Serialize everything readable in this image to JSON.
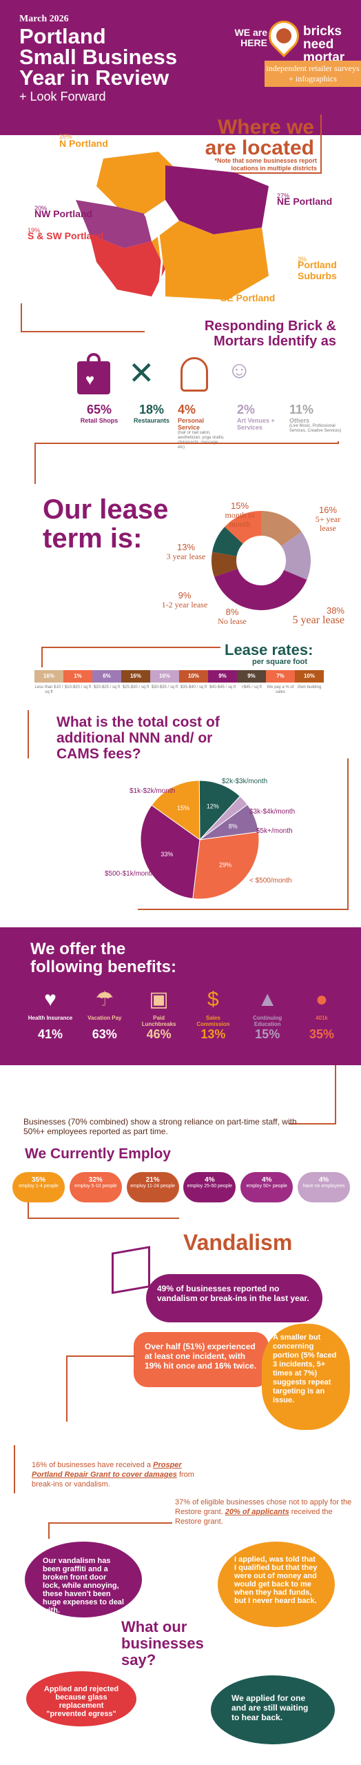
{
  "header": {
    "date": "March 2026",
    "title_line1": "Portland",
    "title_line2": "Small Business",
    "title_line3": "Year in Review",
    "subtitle": "+ Look Forward",
    "we_are_here": "WE are HERE",
    "brand": "bricks need mortar",
    "brand_tagline": "independent retailer surveys + infographics"
  },
  "locations": {
    "title_line1": "Where we",
    "title_line2": "are located",
    "note": "*Note that some businesses report locations in multiple districts",
    "districts": [
      {
        "pct": "16%",
        "name": "N Portland"
      },
      {
        "pct": "20%",
        "name": "NW Portland"
      },
      {
        "pct": "19%",
        "name": "S & SW Portland"
      },
      {
        "pct": "27%",
        "name": "NE Portland"
      },
      {
        "pct": "3%",
        "name": "Portland Suburbs"
      },
      {
        "pct": "33%",
        "name": "SE Portland"
      }
    ]
  },
  "business_types": {
    "title_line1": "Responding Brick &",
    "title_line2": "Mortars Identify as",
    "items": [
      {
        "pct": "65%",
        "label": "Retail Shops",
        "detail": "",
        "icon": "shopping-bag-heart-icon"
      },
      {
        "pct": "18%",
        "label": "Restaurants",
        "detail": "",
        "icon": "fork-knife-icon"
      },
      {
        "pct": "4%",
        "label": "Personal Service",
        "detail": "(hair or nail salon, aesthetician, yoga studio, chiropractic, massage, etc)",
        "icon": "haircut-icon"
      },
      {
        "pct": "2%",
        "label": "Art Venues + Services",
        "detail": "",
        "icon": "art-venue-icon"
      },
      {
        "pct": "11%",
        "label": "Others",
        "detail": "(Live Music, Professional Services, Creative Services)",
        "icon": ""
      }
    ]
  },
  "lease_term": {
    "title_line1": "Our lease",
    "title_line2": "term is:",
    "segments": [
      {
        "pct": "15%",
        "label": "month to month",
        "color": "#c68a64"
      },
      {
        "pct": "16%",
        "label": "5+ year lease",
        "color": "#b39bbd"
      },
      {
        "pct": "38%",
        "label": "5 year lease",
        "color": "#8b1a6e"
      },
      {
        "pct": "8%",
        "label": "No lease",
        "color": "#8a4a1d"
      },
      {
        "pct": "9%",
        "label": "1-2 year lease",
        "color": "#1e5a52"
      },
      {
        "pct": "13%",
        "label": "3 year lease",
        "color": "#f06a45"
      }
    ]
  },
  "lease_rates": {
    "title": "Lease rates:",
    "subtitle": "per square foot",
    "segments": [
      {
        "pct": "16%",
        "color": "#d7b48c",
        "label": "Less than $10 / sq ft"
      },
      {
        "pct": "1%",
        "color": "#f06a45",
        "label": "$10-$20 / sq ft"
      },
      {
        "pct": "6%",
        "color": "#9e7ab4",
        "label": "$20-$25 / sq ft"
      },
      {
        "pct": "16%",
        "color": "#8a4a1d",
        "label": "$25-$30 / sq ft"
      },
      {
        "pct": "16%",
        "color": "#c6a3c8",
        "label": "$30-$35 / sq ft"
      },
      {
        "pct": "10%",
        "color": "#c4562e",
        "label": "$35-$40 / sq ft"
      },
      {
        "pct": "9%",
        "color": "#8b1a6e",
        "label": "$40-$45 / sq ft"
      },
      {
        "pct": "9%",
        "color": "#5a4636",
        "label": ">$45 / sq ft"
      },
      {
        "pct": "7%",
        "color": "#f06a45",
        "label": "We pay a % of sales"
      },
      {
        "pct": "10%",
        "color": "#b5581a",
        "label": "Own building"
      }
    ]
  },
  "nnn": {
    "title_line1": "What is the total cost of",
    "title_line2": "additional NNN and/ or",
    "title_line3": "CAMS fees?",
    "slices": [
      {
        "label": "$1k-$2k/month",
        "pct": "15%",
        "value": 15,
        "color": "#f39a1d"
      },
      {
        "label": "$2k-$3k/month",
        "pct": "12%",
        "value": 12,
        "color": "#1e5a52"
      },
      {
        "label": "$3k-$4k/month",
        "pct": "3%",
        "value": 3,
        "color": "#c6a3c8"
      },
      {
        "label": "$5k+/month",
        "pct": "8%",
        "value": 8,
        "color": "#8e6aa0"
      },
      {
        "label": "< $500/month",
        "pct": "29%",
        "value": 29,
        "color": "#f06a45"
      },
      {
        "label": "$500-$1k/month",
        "pct": "33%",
        "value": 33,
        "color": "#8b1a6e"
      }
    ]
  },
  "benefits": {
    "title_line1": "We offer the",
    "title_line2": "following benefits:",
    "items": [
      {
        "label": "Health Insurance",
        "pct": "41%",
        "icon": "heart-shield-icon",
        "color": "#ffffff"
      },
      {
        "label": "Vacation Pay",
        "pct": "63%",
        "icon": "beach-umbrella-icon",
        "color": "#ffffff"
      },
      {
        "label": "Paid Lunchbreaks",
        "pct": "46%",
        "icon": "lunch-bag-icon",
        "color": "#f3c89a"
      },
      {
        "label": "Sales Commission",
        "pct": "13%",
        "icon": "coins-chart-icon",
        "color": "#f39a1d"
      },
      {
        "label": "Continuing Education",
        "pct": "15%",
        "icon": "graduation-cap-icon",
        "color": "#b39bbd"
      },
      {
        "label": "401k",
        "pct": "35%",
        "icon": "piggy-bank-icon",
        "color": "#f06a45"
      }
    ]
  },
  "employ": {
    "intro": "Businesses (70% combined) show a strong reliance on part-time staff, with 50%+ employees reported as part time.",
    "title": "We Currently Employ",
    "items": [
      {
        "pct": "35%",
        "label": "employ 1-4 people",
        "color": "#f39a1d"
      },
      {
        "pct": "32%",
        "label": "employ 5-10 people",
        "color": "#f06a45"
      },
      {
        "pct": "21%",
        "label": "employ 11-24 people",
        "color": "#c4562e"
      },
      {
        "pct": "4%",
        "label": "employ 25-50 people",
        "color": "#8b1a6e"
      },
      {
        "pct": "4%",
        "label": "employ 50+ people",
        "color": "#9e2c84"
      },
      {
        "pct": "4%",
        "label": "have no employees",
        "color": "#c6a3c8"
      }
    ]
  },
  "vandalism": {
    "title": "Vandalism",
    "no_vandalism": "49% of businesses reported no vandalism or break-ins in the last year.",
    "over_half": "Over half (51%) experienced at least one incident, with 19% hit once and 16% twice.",
    "repeat": "A smaller but concerning portion (5% faced 3 incidents, 5+ times at 7%) suggests repeat targeting is an issue.",
    "grant_pre": "16% of businesses have received a ",
    "grant_em": "Prosper Portland Repair Grant to cover damages",
    "grant_post": " from break-ins or vandalism.",
    "restore_pre": "37% of eligible businesses chose not to apply for the Restore grant. ",
    "restore_em": "20% of applicants",
    "restore_post": " received the Restore grant."
  },
  "say": {
    "title_line1": "What our",
    "title_line2": "businesses",
    "title_line3": "say?",
    "quote1": "Our vandalism has been graffiti and a broken front door lock, while annoying, these haven't been huge expenses to deal with.",
    "quote2": "I applied, was told that I qualified but that they were out of money and would get back to me when they had funds, but I never heard back.",
    "quote3": "Applied and rejected because glass replacement \"prevented egress\"",
    "quote4": "We applied for one and are still waiting to hear back."
  }
}
